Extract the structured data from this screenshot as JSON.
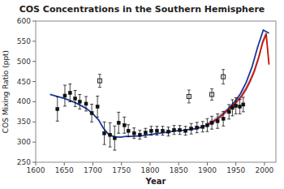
{
  "chart_data": {
    "type": "line",
    "title": "COS Concentrations in the Southern Hemisphere",
    "x_label": "Year",
    "y_label": "COS Mixing Ratio (ppt)",
    "xlim": [
      1600,
      2020
    ],
    "ylim": [
      250,
      600
    ],
    "xticks": [
      1600,
      1650,
      1700,
      1750,
      1800,
      1850,
      1900,
      1950,
      2000
    ],
    "yticks": [
      250,
      300,
      350,
      400,
      450,
      500,
      550,
      600
    ],
    "grid": false,
    "series": [
      {
        "type": "area",
        "color": "#b0b0cc",
        "x": [
          1900,
          1910,
          1920,
          1930,
          1940,
          1950,
          1960,
          1968,
          1975,
          1982,
          1990,
          1997,
          2003,
          2008
        ],
        "low": [
          338,
          344,
          354,
          366,
          378,
          391,
          407,
          425,
          444,
          467,
          502,
          540,
          560,
          484
        ],
        "high": [
          350,
          357,
          367,
          379,
          391,
          406,
          422,
          440,
          460,
          483,
          518,
          556,
          576,
          500
        ]
      },
      {
        "type": "line",
        "color": "#1a3a99",
        "x": [
          1625,
          1640,
          1650,
          1660,
          1670,
          1680,
          1690,
          1700,
          1710,
          1718,
          1728,
          1738,
          1748,
          1758,
          1768,
          1778,
          1788,
          1798,
          1808,
          1818,
          1828,
          1838,
          1848,
          1858,
          1868,
          1878,
          1888,
          1898,
          1908,
          1918,
          1928,
          1938,
          1948,
          1958,
          1968,
          1978,
          1988,
          1998,
          2008
        ],
        "values": [
          418,
          412,
          408,
          403,
          397,
          390,
          382,
          370,
          355,
          335,
          318,
          313,
          312,
          314,
          314,
          315,
          316,
          318,
          320,
          322,
          324,
          326,
          328,
          329,
          331,
          333,
          336,
          341,
          349,
          358,
          370,
          384,
          400,
          420,
          448,
          485,
          535,
          578,
          570
        ]
      },
      {
        "type": "line",
        "color": "#cc1100",
        "x": [
          1900,
          1910,
          1920,
          1930,
          1940,
          1950,
          1960,
          1968,
          1975,
          1982,
          1990,
          1997,
          2003,
          2008
        ],
        "values": [
          344,
          350,
          360,
          372,
          384,
          398,
          414,
          432,
          452,
          475,
          510,
          548,
          568,
          492
        ]
      },
      {
        "type": "scatter",
        "marker": "filled-square",
        "color": "#111111",
        "x": [
          1638,
          1651,
          1660,
          1669,
          1677,
          1688,
          1698,
          1708,
          1720,
          1730,
          1738,
          1745,
          1755,
          1762,
          1772,
          1782,
          1792,
          1802,
          1812,
          1822,
          1832,
          1842,
          1852,
          1862,
          1872,
          1882,
          1892,
          1900,
          1908,
          1918,
          1928,
          1938,
          1944,
          1950,
          1957,
          1963
        ],
        "values": [
          382,
          415,
          422,
          408,
          400,
          395,
          372,
          388,
          322,
          318,
          310,
          348,
          342,
          328,
          322,
          318,
          323,
          328,
          328,
          328,
          326,
          330,
          330,
          328,
          333,
          336,
          338,
          342,
          348,
          352,
          358,
          375,
          385,
          390,
          388,
          393
        ],
        "errors": [
          30,
          26,
          22,
          20,
          18,
          18,
          22,
          26,
          28,
          30,
          30,
          26,
          20,
          15,
          13,
          11,
          11,
          11,
          11,
          11,
          11,
          11,
          11,
          11,
          13,
          13,
          13,
          16,
          16,
          18,
          18,
          18,
          20,
          20,
          18,
          18
        ]
      },
      {
        "type": "scatter",
        "marker": "open-square",
        "color": "#222222",
        "x": [
          1712,
          1868,
          1908,
          1928
        ],
        "values": [
          452,
          413,
          418,
          462
        ],
        "errors": [
          16,
          16,
          14,
          18
        ]
      }
    ]
  }
}
